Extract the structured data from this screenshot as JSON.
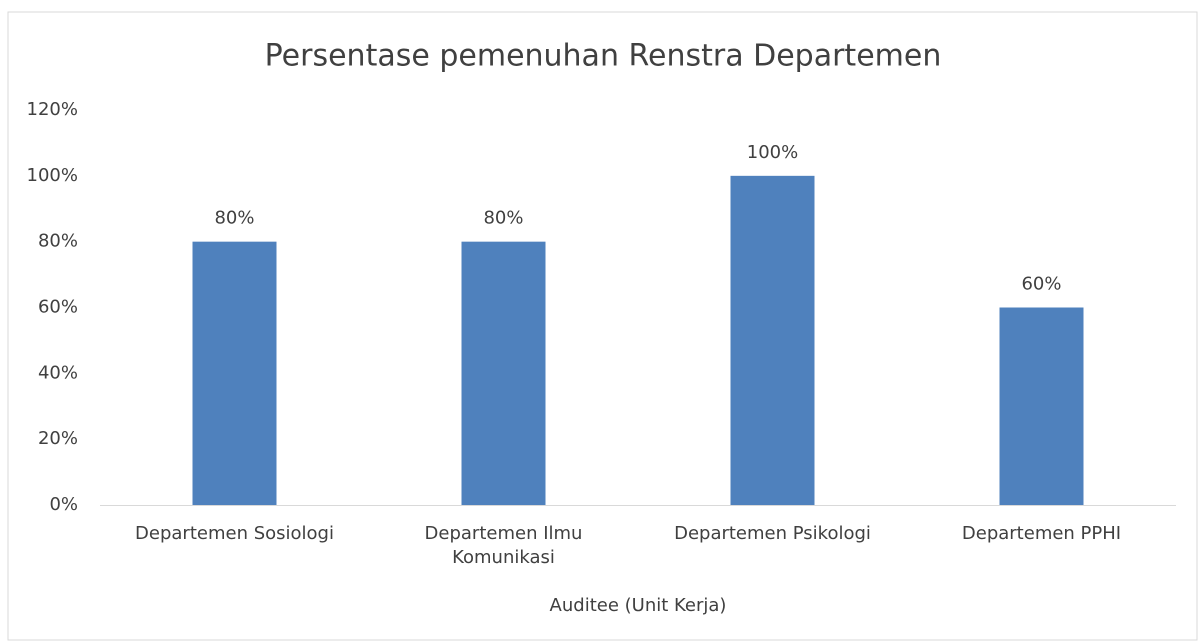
{
  "chart_data": {
    "type": "bar",
    "title": "Persentase pemenuhan Renstra Departemen",
    "x_label": "Auditee (Unit Kerja)",
    "categories": [
      "Departemen Sosiologi",
      "Departemen Ilmu Komunikasi",
      "Departemen Psikologi",
      "Departemen PPHI"
    ],
    "values": [
      80,
      80,
      100,
      60
    ],
    "value_labels": [
      "80%",
      "80%",
      "100%",
      "60%"
    ],
    "color": "#4f81bd",
    "ylim": [
      0,
      120
    ],
    "yticks": [
      {
        "value": 0,
        "label": "0%"
      },
      {
        "value": 20,
        "label": "20%"
      },
      {
        "value": 40,
        "label": "40%"
      },
      {
        "value": 60,
        "label": "60%"
      },
      {
        "value": 80,
        "label": "80%"
      },
      {
        "value": 100,
        "label": "100%"
      },
      {
        "value": 120,
        "label": "120%"
      }
    ],
    "grid": false
  }
}
